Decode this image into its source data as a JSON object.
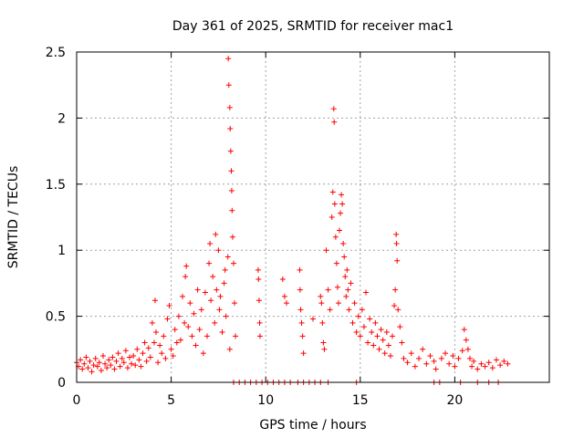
{
  "chart_data": {
    "type": "scatter",
    "title": "Day 361 of 2025, SRMTID for receiver mac1",
    "xlabel": "GPS time / hours",
    "ylabel": "SRMTID / TECUs",
    "xlim": [
      0,
      25
    ],
    "ylim": [
      0,
      2.5
    ],
    "xticks": [
      0,
      5,
      10,
      15,
      20
    ],
    "yticks": [
      0,
      0.5,
      1,
      1.5,
      2,
      2.5
    ],
    "ytick_labels": [
      "0",
      "0.5",
      "1",
      "1.5",
      "2",
      "2.5"
    ],
    "grid": true,
    "marker": "+",
    "color": "#ff0000",
    "series": [
      {
        "name": "SRMTID",
        "points": [
          [
            0.0,
            0.15
          ],
          [
            0.1,
            0.12
          ],
          [
            0.2,
            0.17
          ],
          [
            0.3,
            0.1
          ],
          [
            0.4,
            0.14
          ],
          [
            0.5,
            0.19
          ],
          [
            0.6,
            0.11
          ],
          [
            0.7,
            0.16
          ],
          [
            0.8,
            0.08
          ],
          [
            0.9,
            0.13
          ],
          [
            1.0,
            0.18
          ],
          [
            1.1,
            0.12
          ],
          [
            1.2,
            0.15
          ],
          [
            1.3,
            0.09
          ],
          [
            1.4,
            0.2
          ],
          [
            1.5,
            0.14
          ],
          [
            1.6,
            0.11
          ],
          [
            1.7,
            0.17
          ],
          [
            1.8,
            0.13
          ],
          [
            1.9,
            0.19
          ],
          [
            2.0,
            0.1
          ],
          [
            2.1,
            0.16
          ],
          [
            2.2,
            0.22
          ],
          [
            2.3,
            0.12
          ],
          [
            2.4,
            0.18
          ],
          [
            2.5,
            0.15
          ],
          [
            2.6,
            0.24
          ],
          [
            2.7,
            0.11
          ],
          [
            2.8,
            0.19
          ],
          [
            2.9,
            0.14
          ],
          [
            3.0,
            0.2
          ],
          [
            3.1,
            0.13
          ],
          [
            3.2,
            0.25
          ],
          [
            3.3,
            0.17
          ],
          [
            3.4,
            0.12
          ],
          [
            3.5,
            0.22
          ],
          [
            3.6,
            0.3
          ],
          [
            3.7,
            0.16
          ],
          [
            3.8,
            0.26
          ],
          [
            3.9,
            0.19
          ],
          [
            4.0,
            0.45
          ],
          [
            4.1,
            0.3
          ],
          [
            4.15,
            0.62
          ],
          [
            4.2,
            0.38
          ],
          [
            4.3,
            0.15
          ],
          [
            4.4,
            0.28
          ],
          [
            4.5,
            0.22
          ],
          [
            4.6,
            0.35
          ],
          [
            4.7,
            0.18
          ],
          [
            4.8,
            0.48
          ],
          [
            4.9,
            0.58
          ],
          [
            5.0,
            0.25
          ],
          [
            5.1,
            0.2
          ],
          [
            5.2,
            0.4
          ],
          [
            5.3,
            0.3
          ],
          [
            5.4,
            0.5
          ],
          [
            5.5,
            0.32
          ],
          [
            5.6,
            0.65
          ],
          [
            5.7,
            0.45
          ],
          [
            5.75,
            0.8
          ],
          [
            5.8,
            0.88
          ],
          [
            5.9,
            0.42
          ],
          [
            6.0,
            0.6
          ],
          [
            6.1,
            0.35
          ],
          [
            6.2,
            0.52
          ],
          [
            6.3,
            0.28
          ],
          [
            6.4,
            0.7
          ],
          [
            6.5,
            0.4
          ],
          [
            6.6,
            0.55
          ],
          [
            6.7,
            0.22
          ],
          [
            6.8,
            0.68
          ],
          [
            6.9,
            0.35
          ],
          [
            7.0,
            0.9
          ],
          [
            7.05,
            1.05
          ],
          [
            7.1,
            0.62
          ],
          [
            7.2,
            0.8
          ],
          [
            7.3,
            0.45
          ],
          [
            7.35,
            1.12
          ],
          [
            7.4,
            0.7
          ],
          [
            7.5,
            1.0
          ],
          [
            7.55,
            0.55
          ],
          [
            7.6,
            0.65
          ],
          [
            7.7,
            0.38
          ],
          [
            7.8,
            0.75
          ],
          [
            7.85,
            0.85
          ],
          [
            7.9,
            0.5
          ],
          [
            8.0,
            0.95
          ],
          [
            8.02,
            2.45
          ],
          [
            8.05,
            2.25
          ],
          [
            8.1,
            2.08
          ],
          [
            8.12,
            1.92
          ],
          [
            8.15,
            1.75
          ],
          [
            8.18,
            1.6
          ],
          [
            8.2,
            1.45
          ],
          [
            8.22,
            1.3
          ],
          [
            8.25,
            1.1
          ],
          [
            8.3,
            0.9
          ],
          [
            8.35,
            0.6
          ],
          [
            8.4,
            0.35
          ],
          [
            8.1,
            0.25
          ],
          [
            9.6,
            0.85
          ],
          [
            9.62,
            0.78
          ],
          [
            9.65,
            0.62
          ],
          [
            9.68,
            0.45
          ],
          [
            9.7,
            0.35
          ],
          [
            10.9,
            0.78
          ],
          [
            11.0,
            0.65
          ],
          [
            11.1,
            0.6
          ],
          [
            11.8,
            0.85
          ],
          [
            11.82,
            0.7
          ],
          [
            11.85,
            0.55
          ],
          [
            11.9,
            0.45
          ],
          [
            11.95,
            0.35
          ],
          [
            12.0,
            0.22
          ],
          [
            12.5,
            0.48
          ],
          [
            12.9,
            0.65
          ],
          [
            12.95,
            0.6
          ],
          [
            13.0,
            0.45
          ],
          [
            13.05,
            0.3
          ],
          [
            13.1,
            0.25
          ],
          [
            13.2,
            1.0
          ],
          [
            13.3,
            0.7
          ],
          [
            13.4,
            0.55
          ],
          [
            13.5,
            1.25
          ],
          [
            13.55,
            1.44
          ],
          [
            13.6,
            2.07
          ],
          [
            13.62,
            1.97
          ],
          [
            13.65,
            1.35
          ],
          [
            13.7,
            1.1
          ],
          [
            13.75,
            0.9
          ],
          [
            13.8,
            0.72
          ],
          [
            13.85,
            0.6
          ],
          [
            13.9,
            1.15
          ],
          [
            13.95,
            1.28
          ],
          [
            14.0,
            1.42
          ],
          [
            14.05,
            1.35
          ],
          [
            14.1,
            1.05
          ],
          [
            14.15,
            0.95
          ],
          [
            14.2,
            0.8
          ],
          [
            14.25,
            0.65
          ],
          [
            14.3,
            0.85
          ],
          [
            14.35,
            0.7
          ],
          [
            14.4,
            0.55
          ],
          [
            14.5,
            0.75
          ],
          [
            14.6,
            0.45
          ],
          [
            14.7,
            0.6
          ],
          [
            14.8,
            0.38
          ],
          [
            14.9,
            0.5
          ],
          [
            15.0,
            0.35
          ],
          [
            15.1,
            0.55
          ],
          [
            15.2,
            0.42
          ],
          [
            15.3,
            0.68
          ],
          [
            15.4,
            0.3
          ],
          [
            15.5,
            0.48
          ],
          [
            15.6,
            0.38
          ],
          [
            15.7,
            0.28
          ],
          [
            15.8,
            0.45
          ],
          [
            15.9,
            0.35
          ],
          [
            16.0,
            0.25
          ],
          [
            16.1,
            0.4
          ],
          [
            16.2,
            0.32
          ],
          [
            16.3,
            0.22
          ],
          [
            16.4,
            0.38
          ],
          [
            16.5,
            0.28
          ],
          [
            16.6,
            0.2
          ],
          [
            16.7,
            0.35
          ],
          [
            16.8,
            0.58
          ],
          [
            16.85,
            0.7
          ],
          [
            16.9,
            1.12
          ],
          [
            16.92,
            1.05
          ],
          [
            16.95,
            0.92
          ],
          [
            17.0,
            0.55
          ],
          [
            17.1,
            0.42
          ],
          [
            17.2,
            0.3
          ],
          [
            17.3,
            0.18
          ],
          [
            17.5,
            0.15
          ],
          [
            17.7,
            0.22
          ],
          [
            17.9,
            0.12
          ],
          [
            18.1,
            0.18
          ],
          [
            18.3,
            0.25
          ],
          [
            18.5,
            0.14
          ],
          [
            18.7,
            0.2
          ],
          [
            18.9,
            0.16
          ],
          [
            19.0,
            0.1
          ],
          [
            19.3,
            0.18
          ],
          [
            19.5,
            0.22
          ],
          [
            19.7,
            0.14
          ],
          [
            19.9,
            0.2
          ],
          [
            20.0,
            0.12
          ],
          [
            20.2,
            0.18
          ],
          [
            20.4,
            0.24
          ],
          [
            20.5,
            0.4
          ],
          [
            20.6,
            0.32
          ],
          [
            20.7,
            0.25
          ],
          [
            20.8,
            0.18
          ],
          [
            20.9,
            0.12
          ],
          [
            21.0,
            0.16
          ],
          [
            21.2,
            0.1
          ],
          [
            21.4,
            0.14
          ],
          [
            21.6,
            0.12
          ],
          [
            21.8,
            0.15
          ],
          [
            22.0,
            0.11
          ],
          [
            22.2,
            0.17
          ],
          [
            22.4,
            0.13
          ],
          [
            22.6,
            0.16
          ],
          [
            22.8,
            0.14
          ],
          [
            8.3,
            0.0
          ],
          [
            8.6,
            0.0
          ],
          [
            8.9,
            0.0
          ],
          [
            9.2,
            0.0
          ],
          [
            9.5,
            0.0
          ],
          [
            9.8,
            0.0
          ],
          [
            10.1,
            0.0
          ],
          [
            10.4,
            0.0
          ],
          [
            10.7,
            0.0
          ],
          [
            11.0,
            0.0
          ],
          [
            11.3,
            0.0
          ],
          [
            11.7,
            0.0
          ],
          [
            12.0,
            0.0
          ],
          [
            12.3,
            0.0
          ],
          [
            12.6,
            0.0
          ],
          [
            12.9,
            0.0
          ],
          [
            13.3,
            0.0
          ],
          [
            14.8,
            0.0
          ],
          [
            18.9,
            0.0
          ],
          [
            19.2,
            0.0
          ],
          [
            20.3,
            0.0
          ],
          [
            21.2,
            0.0
          ],
          [
            21.8,
            0.0
          ],
          [
            22.3,
            0.0
          ]
        ]
      }
    ]
  }
}
